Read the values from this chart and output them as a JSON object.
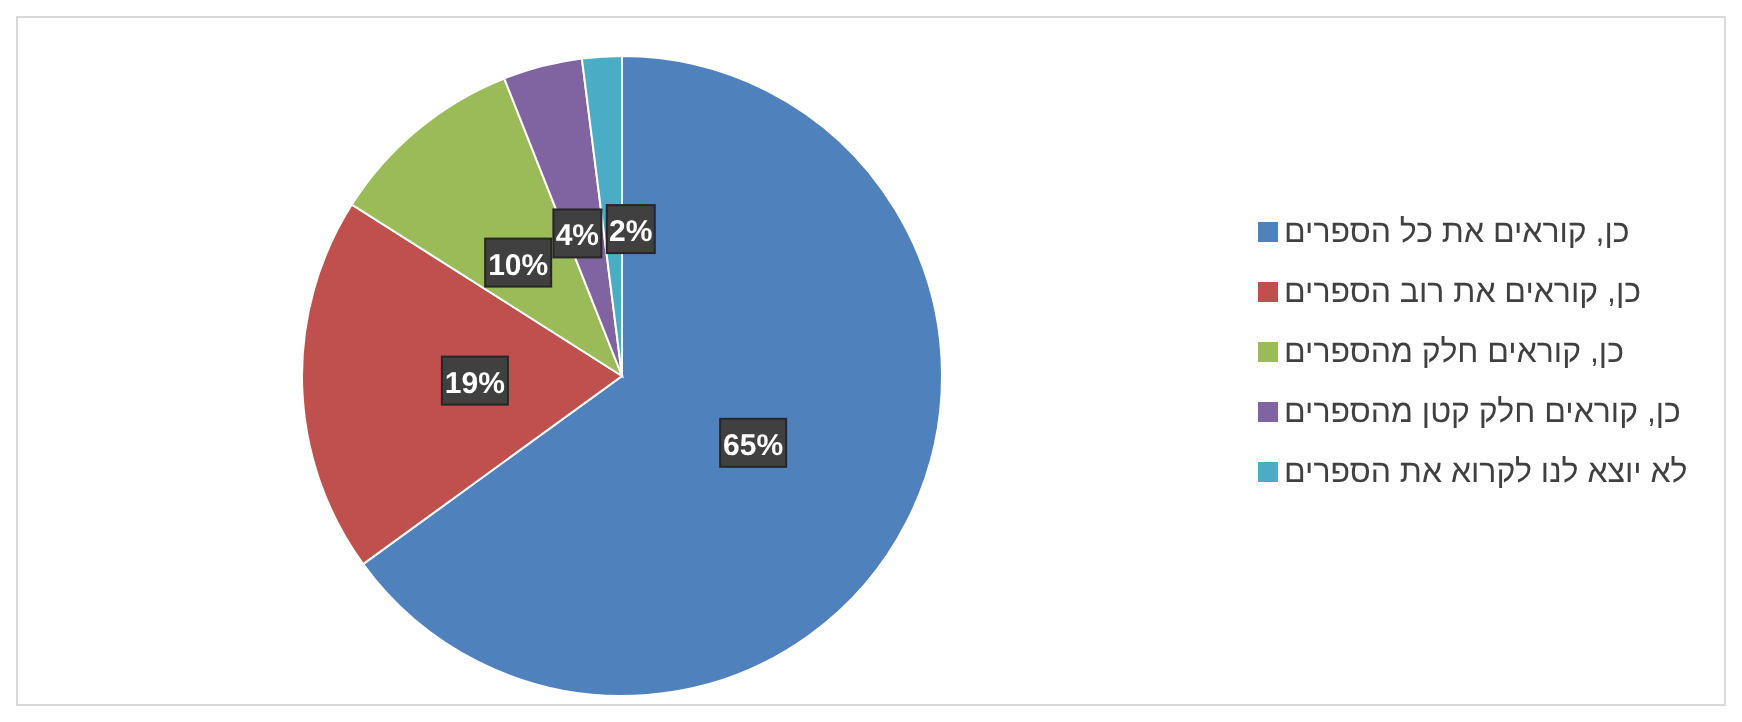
{
  "chart_data": {
    "type": "pie",
    "categories": [
      "כן, קוראים את כל הספרים",
      "כן, קוראים את רוב הספרים",
      "כן, קוראים חלק מהספרים",
      "כן, קוראים חלק קטן מהספרים",
      "לא יוצא לנו לקרוא את הספרים"
    ],
    "values": [
      65,
      19,
      10,
      4,
      2
    ],
    "value_labels": [
      "65%",
      "19%",
      "10%",
      "4%",
      "2%"
    ],
    "colors": [
      "#4f81bd",
      "#c0504d",
      "#9bbb59",
      "#8064a2",
      "#4bacc6"
    ],
    "legend": "right"
  }
}
